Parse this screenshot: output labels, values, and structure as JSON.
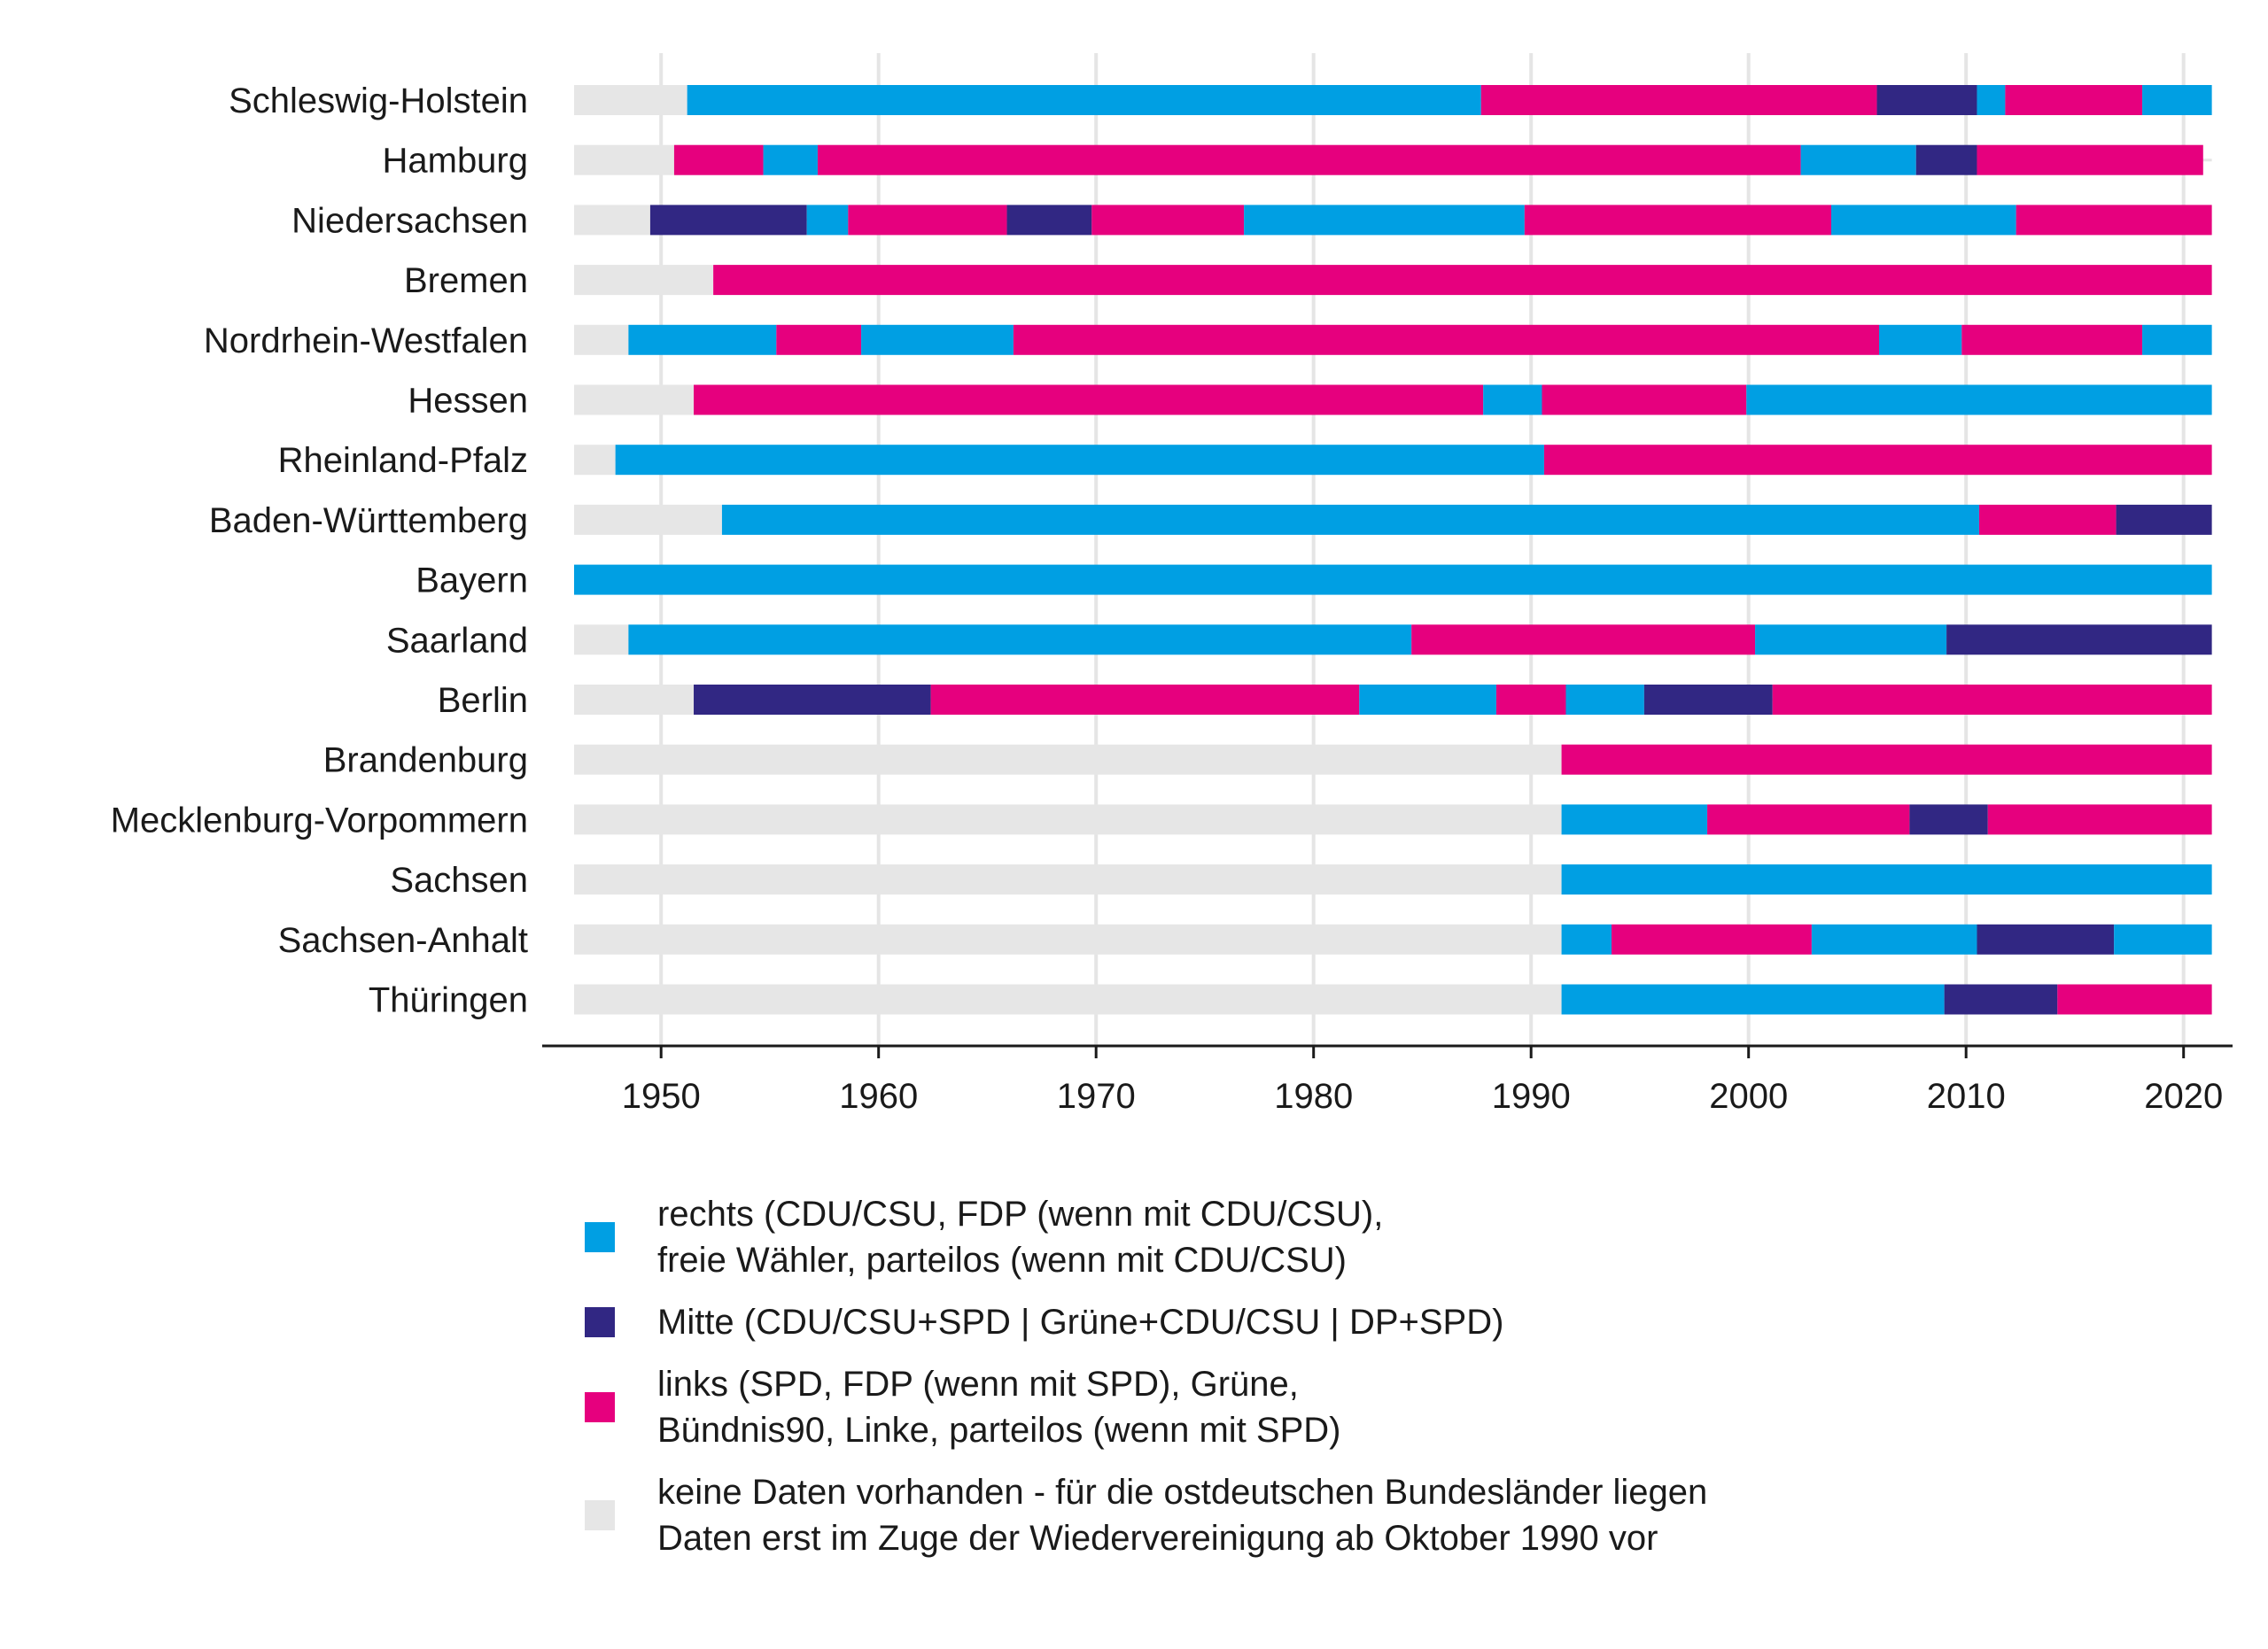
{
  "colors": {
    "rechts": "#009FE3",
    "mitte": "#312783",
    "links": "#E6007E",
    "none": "#E6E6E6",
    "grid": "#E5E5E5",
    "axis": "#1a1a1a"
  },
  "legend": [
    {
      "key": "rechts",
      "line1": "rechts (CDU/CSU, FDP (wenn mit CDU/CSU),",
      "line2": "freie Wähler, parteilos (wenn mit CDU/CSU)"
    },
    {
      "key": "mitte",
      "line1": "Mitte (CDU/CSU+SPD | Grüne+CDU/CSU | DP+SPD)",
      "line2": ""
    },
    {
      "key": "links",
      "line1": "links (SPD, FDP (wenn mit SPD), Grüne,",
      "line2": "Bündnis90, Linke, parteilos (wenn mit SPD)"
    },
    {
      "key": "none",
      "line1": "keine Daten vorhanden - für die ostdeutschen Bundesländer liegen",
      "line2": "Daten erst im Zuge der Wiedervereinigung ab Oktober 1990 vor"
    }
  ],
  "chart_data": {
    "type": "bar",
    "orientation": "horizontal-timeline",
    "xlim": [
      1946,
      2021.3
    ],
    "xticks": [
      1950,
      1960,
      1970,
      1980,
      1990,
      2000,
      2010,
      2020
    ],
    "grid": true,
    "legend_position": "bottom",
    "rows": [
      {
        "name": "Schleswig-Holstein",
        "segments": [
          {
            "from": 1946,
            "to": 1951.2,
            "cat": "none"
          },
          {
            "from": 1951.2,
            "to": 1987.7,
            "cat": "rechts"
          },
          {
            "from": 1987.7,
            "to": 2005.9,
            "cat": "links"
          },
          {
            "from": 2005.9,
            "to": 2010.5,
            "cat": "mitte"
          },
          {
            "from": 2010.5,
            "to": 2011.8,
            "cat": "rechts"
          },
          {
            "from": 2011.8,
            "to": 2018.1,
            "cat": "links"
          },
          {
            "from": 2018.1,
            "to": 2021.3,
            "cat": "rechts"
          }
        ]
      },
      {
        "name": "Hamburg",
        "segments": [
          {
            "from": 1946,
            "to": 1950.6,
            "cat": "none"
          },
          {
            "from": 1950.6,
            "to": 1954.7,
            "cat": "links"
          },
          {
            "from": 1954.7,
            "to": 1957.2,
            "cat": "rechts"
          },
          {
            "from": 1957.2,
            "to": 2002.4,
            "cat": "links"
          },
          {
            "from": 2002.4,
            "to": 2007.7,
            "cat": "rechts"
          },
          {
            "from": 2007.7,
            "to": 2010.5,
            "cat": "mitte"
          },
          {
            "from": 2010.5,
            "to": 2020.9,
            "cat": "links"
          }
        ]
      },
      {
        "name": "Niedersachsen",
        "segments": [
          {
            "from": 1946,
            "to": 1949.5,
            "cat": "none"
          },
          {
            "from": 1949.5,
            "to": 1956.7,
            "cat": "mitte"
          },
          {
            "from": 1956.7,
            "to": 1958.6,
            "cat": "rechts"
          },
          {
            "from": 1958.6,
            "to": 1965.9,
            "cat": "links"
          },
          {
            "from": 1965.9,
            "to": 1969.8,
            "cat": "mitte"
          },
          {
            "from": 1969.8,
            "to": 1976.8,
            "cat": "links"
          },
          {
            "from": 1976.8,
            "to": 1989.7,
            "cat": "rechts"
          },
          {
            "from": 1989.7,
            "to": 2003.8,
            "cat": "links"
          },
          {
            "from": 2003.8,
            "to": 2012.3,
            "cat": "rechts"
          },
          {
            "from": 2012.3,
            "to": 2021.3,
            "cat": "links"
          }
        ]
      },
      {
        "name": "Bremen",
        "segments": [
          {
            "from": 1946,
            "to": 1952.4,
            "cat": "none"
          },
          {
            "from": 1952.4,
            "to": 2021.3,
            "cat": "links"
          }
        ]
      },
      {
        "name": "Nordrhein-Westfalen",
        "segments": [
          {
            "from": 1946,
            "to": 1948.5,
            "cat": "none"
          },
          {
            "from": 1948.5,
            "to": 1955.3,
            "cat": "rechts"
          },
          {
            "from": 1955.3,
            "to": 1959.2,
            "cat": "links"
          },
          {
            "from": 1959.2,
            "to": 1966.2,
            "cat": "rechts"
          },
          {
            "from": 1966.2,
            "to": 2006.0,
            "cat": "links"
          },
          {
            "from": 2006.0,
            "to": 2009.8,
            "cat": "rechts"
          },
          {
            "from": 2009.8,
            "to": 2018.1,
            "cat": "links"
          },
          {
            "from": 2018.1,
            "to": 2021.3,
            "cat": "rechts"
          }
        ]
      },
      {
        "name": "Hessen",
        "segments": [
          {
            "from": 1946,
            "to": 1951.5,
            "cat": "none"
          },
          {
            "from": 1951.5,
            "to": 1987.8,
            "cat": "links"
          },
          {
            "from": 1987.8,
            "to": 1990.5,
            "cat": "rechts"
          },
          {
            "from": 1990.5,
            "to": 1999.9,
            "cat": "links"
          },
          {
            "from": 1999.9,
            "to": 2021.3,
            "cat": "rechts"
          }
        ]
      },
      {
        "name": "Rheinland-Pfalz",
        "segments": [
          {
            "from": 1946,
            "to": 1947.9,
            "cat": "none"
          },
          {
            "from": 1947.9,
            "to": 1990.6,
            "cat": "rechts"
          },
          {
            "from": 1990.6,
            "to": 2021.3,
            "cat": "links"
          }
        ]
      },
      {
        "name": "Baden-Württemberg",
        "segments": [
          {
            "from": 1946,
            "to": 1952.8,
            "cat": "none"
          },
          {
            "from": 1952.8,
            "to": 2010.6,
            "cat": "rechts"
          },
          {
            "from": 2010.6,
            "to": 2016.9,
            "cat": "links"
          },
          {
            "from": 2016.9,
            "to": 2021.3,
            "cat": "mitte"
          }
        ]
      },
      {
        "name": "Bayern",
        "segments": [
          {
            "from": 1946,
            "to": 2021.3,
            "cat": "rechts"
          }
        ]
      },
      {
        "name": "Saarland",
        "segments": [
          {
            "from": 1946,
            "to": 1948.5,
            "cat": "none"
          },
          {
            "from": 1948.5,
            "to": 1984.5,
            "cat": "rechts"
          },
          {
            "from": 1984.5,
            "to": 2000.3,
            "cat": "links"
          },
          {
            "from": 2000.3,
            "to": 2009.1,
            "cat": "rechts"
          },
          {
            "from": 2009.1,
            "to": 2021.3,
            "cat": "mitte"
          }
        ]
      },
      {
        "name": "Berlin",
        "segments": [
          {
            "from": 1946,
            "to": 1951.5,
            "cat": "none"
          },
          {
            "from": 1951.5,
            "to": 1962.4,
            "cat": "mitte"
          },
          {
            "from": 1962.4,
            "to": 1982.1,
            "cat": "links"
          },
          {
            "from": 1982.1,
            "to": 1988.4,
            "cat": "rechts"
          },
          {
            "from": 1988.4,
            "to": 1991.6,
            "cat": "links"
          },
          {
            "from": 1991.6,
            "to": 1995.2,
            "cat": "rechts"
          },
          {
            "from": 1995.2,
            "to": 2001.1,
            "cat": "mitte"
          },
          {
            "from": 2001.1,
            "to": 2021.3,
            "cat": "links"
          }
        ]
      },
      {
        "name": "Brandenburg",
        "segments": [
          {
            "from": 1946,
            "to": 1991.4,
            "cat": "none"
          },
          {
            "from": 1991.4,
            "to": 2021.3,
            "cat": "links"
          }
        ]
      },
      {
        "name": "Mecklenburg-Vorpommern",
        "segments": [
          {
            "from": 1946,
            "to": 1991.4,
            "cat": "none"
          },
          {
            "from": 1991.4,
            "to": 1998.1,
            "cat": "rechts"
          },
          {
            "from": 1998.1,
            "to": 2007.4,
            "cat": "links"
          },
          {
            "from": 2007.4,
            "to": 2011.0,
            "cat": "mitte"
          },
          {
            "from": 2011.0,
            "to": 2021.3,
            "cat": "links"
          }
        ]
      },
      {
        "name": "Sachsen",
        "segments": [
          {
            "from": 1946,
            "to": 1991.4,
            "cat": "none"
          },
          {
            "from": 1991.4,
            "to": 2021.3,
            "cat": "rechts"
          }
        ]
      },
      {
        "name": "Sachsen-Anhalt",
        "segments": [
          {
            "from": 1946,
            "to": 1991.4,
            "cat": "none"
          },
          {
            "from": 1991.4,
            "to": 1993.7,
            "cat": "rechts"
          },
          {
            "from": 1993.7,
            "to": 2002.9,
            "cat": "links"
          },
          {
            "from": 2002.9,
            "to": 2010.5,
            "cat": "rechts"
          },
          {
            "from": 2010.5,
            "to": 2016.8,
            "cat": "mitte"
          },
          {
            "from": 2016.8,
            "to": 2021.3,
            "cat": "rechts"
          }
        ]
      },
      {
        "name": "Thüringen",
        "segments": [
          {
            "from": 1946,
            "to": 1991.4,
            "cat": "none"
          },
          {
            "from": 1991.4,
            "to": 2009.0,
            "cat": "rechts"
          },
          {
            "from": 2009.0,
            "to": 2014.2,
            "cat": "mitte"
          },
          {
            "from": 2014.2,
            "to": 2021.3,
            "cat": "links"
          }
        ]
      }
    ]
  }
}
